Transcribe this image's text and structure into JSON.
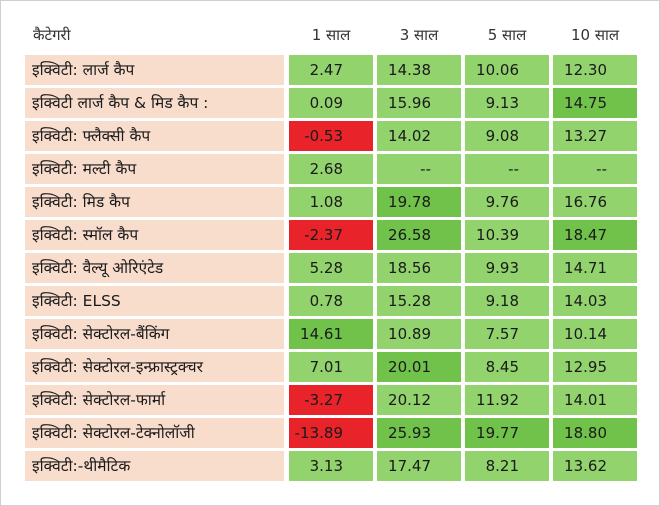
{
  "header": {
    "category": "कैटेगरी",
    "periods": [
      "1 साल",
      "3 साल",
      "5 साल",
      "10 साल"
    ]
  },
  "rows": [
    {
      "category": "इक्विटी: लार्ज कैप",
      "values": [
        "2.47",
        "14.38",
        "10.06",
        "12.30"
      ],
      "tones": [
        "light",
        "light",
        "light",
        "light"
      ]
    },
    {
      "category": "इक्विटी लार्ज कैप & मिड कैप :",
      "values": [
        "0.09",
        "15.96",
        "9.13",
        "14.75"
      ],
      "tones": [
        "light",
        "light",
        "light",
        "mid"
      ]
    },
    {
      "category": "इक्विटी: फ्लैक्सी कैप",
      "values": [
        "-0.53",
        "14.02",
        "9.08",
        "13.27"
      ],
      "tones": [
        "red",
        "light",
        "light",
        "light"
      ]
    },
    {
      "category": "इक्विटी: मल्टी कैप",
      "values": [
        "2.68",
        "--",
        "--",
        "--"
      ],
      "tones": [
        "light",
        "light",
        "light",
        "light"
      ]
    },
    {
      "category": "इक्विटी: मिड कैप",
      "values": [
        "1.08",
        "19.78",
        "9.76",
        "16.76"
      ],
      "tones": [
        "light",
        "mid",
        "light",
        "light"
      ]
    },
    {
      "category": "इक्विटी: स्मॉल कैप",
      "values": [
        "-2.37",
        "26.58",
        "10.39",
        "18.47"
      ],
      "tones": [
        "red",
        "mid",
        "light",
        "mid"
      ]
    },
    {
      "category": "इक्विटी: वैल्यू ओरिएंटेड",
      "values": [
        "5.28",
        "18.56",
        "9.93",
        "14.71"
      ],
      "tones": [
        "light",
        "light",
        "light",
        "light"
      ]
    },
    {
      "category": "इक्विटी: ELSS",
      "values": [
        "0.78",
        "15.28",
        "9.18",
        "14.03"
      ],
      "tones": [
        "light",
        "light",
        "light",
        "light"
      ]
    },
    {
      "category": "इक्विटी: सेक्टोरल-बैंकिंग",
      "values": [
        "14.61",
        "10.89",
        "7.57",
        "10.14"
      ],
      "tones": [
        "mid",
        "light",
        "light",
        "light"
      ]
    },
    {
      "category": "इक्विटी: सेक्टोरल-इन्फ्रास्ट्रक्चर",
      "values": [
        "7.01",
        "20.01",
        "8.45",
        "12.95"
      ],
      "tones": [
        "light",
        "mid",
        "light",
        "light"
      ]
    },
    {
      "category": "इक्विटी: सेक्टोरल-फार्मा",
      "values": [
        "-3.27",
        "20.12",
        "11.92",
        "14.01"
      ],
      "tones": [
        "red",
        "light",
        "light",
        "light"
      ]
    },
    {
      "category": "इक्विटी: सेक्टोरल-टेक्नोलॉजी",
      "values": [
        "-13.89",
        "25.93",
        "19.77",
        "18.80"
      ],
      "tones": [
        "red",
        "mid",
        "mid",
        "mid"
      ]
    },
    {
      "category": "इक्विटी:-थीमैटिक",
      "values": [
        "3.13",
        "17.47",
        "8.21",
        "13.62"
      ],
      "tones": [
        "light",
        "light",
        "light",
        "light"
      ]
    }
  ],
  "colors": {
    "light": "#92d36e",
    "mid": "#70c24a",
    "red": "#e8232a",
    "category_bg": "#f8dccc"
  }
}
